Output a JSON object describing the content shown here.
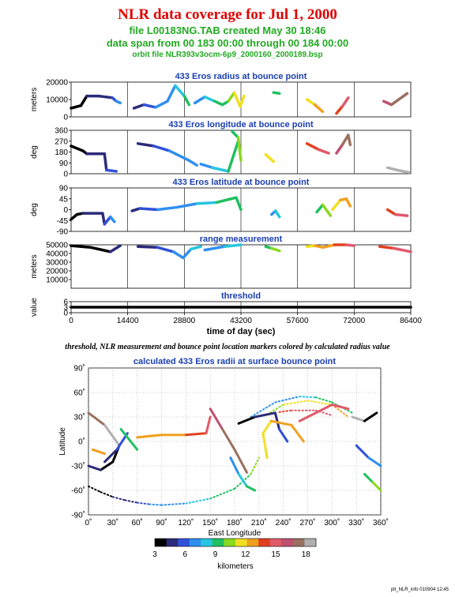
{
  "header": {
    "title": "NLR data coverage for Jul 1, 2000",
    "file_line": "file L00183NG.TAB created May 30 18:46",
    "span_line": "data span from 00 183 00:00 through 00 184 00:00",
    "orbit_line": "orbit file NLR393v3ocm-6p9_2000160_2000189.bsp"
  },
  "caption": "threshold, NLR measurement and bounce point location markers colored by calculated radius value",
  "footer": "plt_NLR_info 010904 12:45",
  "colors": {
    "title_red": "#e00000",
    "subtitle_green": "#22aa22",
    "panel_title_blue": "#1a3fb0"
  },
  "chart_data": [
    {
      "type": "scatter",
      "title": "433 Eros radius at bounce point",
      "ylabel": "meters",
      "ylim": [
        0,
        20000
      ],
      "yticks": [
        "0",
        "10000",
        "20000"
      ],
      "xlim": [
        0,
        86400
      ],
      "segments": [
        {
          "x": [
            0,
            2500,
            4000,
            7000,
            10500,
            11500,
            12500
          ],
          "y": [
            5000,
            6500,
            12000,
            12000,
            11000,
            9000,
            8000
          ]
        },
        {
          "x": [
            16000,
            18500,
            21500,
            24500,
            26500,
            28800,
            30000
          ],
          "y": [
            5000,
            7000,
            5500,
            9000,
            18000,
            12000,
            7000
          ]
        },
        {
          "x": [
            31500,
            34000,
            36500,
            38500,
            40000,
            41500,
            43000,
            44000
          ],
          "y": [
            8000,
            11500,
            9000,
            7000,
            9000,
            14000,
            6000,
            12000
          ]
        },
        {
          "x": [
            51500,
            53000
          ],
          "y": [
            14000,
            13500
          ]
        },
        {
          "x": [
            60000,
            62000,
            64000
          ],
          "y": [
            10000,
            7000,
            3000
          ]
        },
        {
          "x": [
            67500,
            69000,
            70500
          ],
          "y": [
            2000,
            6000,
            11000
          ]
        },
        {
          "x": [
            79500,
            81500,
            85500
          ],
          "y": [
            9000,
            7000,
            13500
          ]
        }
      ]
    },
    {
      "type": "scatter",
      "title": "433 Eros longitude at bounce point",
      "ylabel": "deg",
      "ylim": [
        0,
        360
      ],
      "yticks": [
        "0",
        "90",
        "180",
        "270",
        "360"
      ],
      "xlim": [
        0,
        86400
      ],
      "segments": [
        {
          "x": [
            0,
            3000,
            4000,
            8500,
            9000,
            11500
          ],
          "y": [
            230,
            190,
            165,
            165,
            30,
            20
          ]
        },
        {
          "x": [
            17000,
            21000,
            25000,
            30000,
            32000
          ],
          "y": [
            250,
            230,
            190,
            110,
            70
          ]
        },
        {
          "x": [
            33000,
            36000,
            40000,
            42500
          ],
          "y": [
            80,
            50,
            20,
            270
          ]
        },
        {
          "x": [
            41000,
            42500,
            43200
          ],
          "y": [
            350,
            300,
            110
          ]
        },
        {
          "x": [
            49500,
            51500
          ],
          "y": [
            160,
            100
          ]
        },
        {
          "x": [
            60000,
            63000,
            65500
          ],
          "y": [
            250,
            200,
            170
          ]
        },
        {
          "x": [
            67500,
            69000,
            70500,
            71000
          ],
          "y": [
            170,
            240,
            320,
            240
          ]
        },
        {
          "x": [
            80500,
            83000,
            86000
          ],
          "y": [
            50,
            30,
            10
          ]
        }
      ]
    },
    {
      "type": "scatter",
      "title": "433 Eros latitude at bounce point",
      "ylabel": "deg",
      "ylim": [
        -90,
        90
      ],
      "yticks": [
        "-90",
        "-45",
        "0",
        "45",
        "90"
      ],
      "xlim": [
        0,
        86400
      ],
      "segments": [
        {
          "x": [
            0,
            1500,
            3000,
            8000,
            8500,
            10000,
            11000
          ],
          "y": [
            -40,
            -20,
            -15,
            -15,
            -60,
            -30,
            -50
          ]
        },
        {
          "x": [
            15500,
            17500,
            22000,
            27000,
            32000,
            37000,
            42000,
            43200
          ],
          "y": [
            -5,
            5,
            0,
            10,
            25,
            30,
            50,
            0
          ]
        },
        {
          "x": [
            51000,
            52000,
            53000
          ],
          "y": [
            -20,
            -5,
            -30
          ]
        },
        {
          "x": [
            62500,
            64000,
            66000
          ],
          "y": [
            -10,
            20,
            -25
          ]
        },
        {
          "x": [
            66500,
            68500,
            70000,
            71000
          ],
          "y": [
            0,
            40,
            45,
            15
          ]
        },
        {
          "x": [
            80500,
            82500,
            85500
          ],
          "y": [
            0,
            -20,
            -25
          ]
        }
      ]
    },
    {
      "type": "scatter",
      "title": "range measurement",
      "ylabel": "meters",
      "ylim": [
        0,
        50000
      ],
      "yticks": [
        "10000",
        "20000",
        "30000",
        "40000",
        "50000"
      ],
      "xlim": [
        0,
        86400
      ],
      "segments": [
        {
          "x": [
            0,
            5000,
            10000,
            12500
          ],
          "y": [
            49000,
            47000,
            42000,
            49000
          ]
        },
        {
          "x": [
            17000,
            22000,
            26000,
            28500,
            30500,
            33000
          ],
          "y": [
            48000,
            47000,
            42000,
            35000,
            45000,
            48000
          ]
        },
        {
          "x": [
            34000,
            39000,
            43200
          ],
          "y": [
            44000,
            48000,
            50000
          ]
        },
        {
          "x": [
            49500,
            51000,
            53000
          ],
          "y": [
            48000,
            46000,
            43000
          ]
        },
        {
          "x": [
            60000,
            62000,
            64000,
            67000,
            70000,
            72000
          ],
          "y": [
            48000,
            49000,
            47000,
            50000,
            50000,
            49000
          ]
        },
        {
          "x": [
            78500,
            82000,
            86400
          ],
          "y": [
            48000,
            46000,
            42000
          ]
        }
      ]
    },
    {
      "type": "scatter",
      "title": "threshold",
      "ylabel": "value",
      "ylim": [
        0,
        6
      ],
      "yticks": [
        "0",
        "3",
        "6"
      ],
      "xlim": [
        0,
        86400
      ],
      "xticks": [
        "0",
        "14400",
        "28800",
        "43200",
        "57600",
        "72000",
        "86400"
      ],
      "xlabel": "time of day (sec)",
      "segments": [
        {
          "x": [
            0,
            86400
          ],
          "y": [
            3,
            3
          ]
        }
      ]
    },
    {
      "type": "scatter",
      "title": "calculated 433 Eros radii at surface bounce point",
      "xlabel": "East Longitude",
      "ylabel": "Latitude",
      "xlim": [
        0,
        360
      ],
      "ylim": [
        -90,
        90
      ],
      "xticks": [
        "0˚",
        "30˚",
        "60˚",
        "90˚",
        "120˚",
        "150˚",
        "180˚",
        "210˚",
        "240˚",
        "270˚",
        "300˚",
        "330˚",
        "360˚"
      ],
      "yticks": [
        "-90˚",
        "-60˚",
        "-30˚",
        "0˚",
        "30˚",
        "60˚",
        "90˚"
      ],
      "colorbar": {
        "label": "kilometers",
        "ticks": [
          "3",
          "6",
          "9",
          "12",
          "15",
          "18"
        ],
        "range": [
          3,
          19
        ]
      },
      "segments": [
        {
          "x": [
            0,
            15,
            30,
            45,
            60,
            75,
            90,
            120,
            150,
            180,
            200,
            210
          ],
          "y": [
            -55,
            -62,
            -68,
            -72,
            -75,
            -77,
            -78,
            -76,
            -70,
            -58,
            -40,
            -20
          ]
        },
        {
          "x": [
            200,
            230,
            260,
            280,
            300,
            325
          ],
          "y": [
            30,
            48,
            55,
            54,
            48,
            35
          ]
        },
        {
          "x": [
            220,
            240,
            270,
            300,
            320
          ],
          "y": [
            33,
            45,
            50,
            45,
            30
          ]
        },
        {
          "x": [
            235,
            250,
            280,
            300
          ],
          "y": [
            36,
            38,
            38,
            32
          ]
        },
        {
          "x": [
            0,
            20,
            38,
            30,
            15,
            0
          ],
          "y": [
            35,
            20,
            -5,
            -25,
            -35,
            -30
          ]
        },
        {
          "x": [
            20,
            35,
            48
          ],
          "y": [
            -25,
            -10,
            10
          ]
        },
        {
          "x": [
            40,
            52,
            60
          ],
          "y": [
            15,
            0,
            -10
          ]
        },
        {
          "x": [
            60,
            90,
            120,
            145,
            150
          ],
          "y": [
            5,
            8,
            8,
            10,
            30
          ]
        },
        {
          "x": [
            150,
            165,
            180,
            195
          ],
          "y": [
            40,
            15,
            -10,
            -38
          ]
        },
        {
          "x": [
            185,
            205,
            230,
            235,
            245
          ],
          "y": [
            22,
            30,
            35,
            15,
            0
          ]
        },
        {
          "x": [
            175,
            185,
            195,
            205
          ],
          "y": [
            -20,
            -40,
            -55,
            -60
          ]
        },
        {
          "x": [
            220,
            215,
            225,
            250,
            265
          ],
          "y": [
            -20,
            10,
            25,
            20,
            0
          ]
        },
        {
          "x": [
            260,
            300,
            320
          ],
          "y": [
            25,
            45,
            40
          ]
        },
        {
          "x": [
            325,
            340,
            355
          ],
          "y": [
            30,
            25,
            35
          ]
        },
        {
          "x": [
            330,
            345,
            360
          ],
          "y": [
            -5,
            -20,
            -30
          ]
        },
        {
          "x": [
            340,
            350,
            360
          ],
          "y": [
            -40,
            -50,
            -60
          ]
        },
        {
          "x": [
            5,
            20
          ],
          "y": [
            -10,
            -15
          ]
        }
      ]
    }
  ]
}
